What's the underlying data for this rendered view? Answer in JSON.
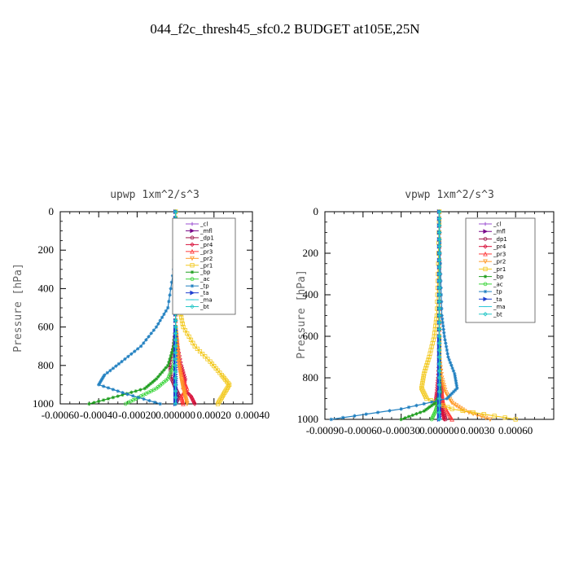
{
  "figure": {
    "title": "044_f2c_thresh45_sfc0.2  BUDGET at105E,25N"
  },
  "chart_data": [
    {
      "type": "line",
      "title": "upwp   1xm^2/s^3",
      "ylabel": "Pressure  [hPa]",
      "xlim": [
        -0.0006,
        0.0004
      ],
      "ylim": [
        1000,
        0
      ],
      "xticks": [
        -0.0006,
        -0.0004,
        -0.0002,
        0.0,
        0.0002,
        0.0004
      ],
      "xtick_labels": [
        "-0.00060",
        "-0.00040",
        "-0.00020",
        "0.000000",
        "0.00020",
        "0.00040"
      ],
      "yticks": [
        0,
        200,
        400,
        600,
        800,
        1000
      ],
      "ytick_labels": [
        "0",
        "200",
        "400",
        "600",
        "800",
        "1000"
      ],
      "legend": "inside-top-right",
      "series": [
        {
          "name": "_cl",
          "color": "#9b4fd0",
          "marker": "plus",
          "x": [
            0,
            0,
            0,
            0,
            0,
            0
          ],
          "y": [
            0,
            200,
            400,
            600,
            800,
            1000
          ]
        },
        {
          "name": "_mfl",
          "color": "#7a0a8a",
          "marker": "triangle-right",
          "x": [
            0,
            0,
            0,
            0,
            0,
            0
          ],
          "y": [
            0,
            200,
            400,
            600,
            800,
            1000
          ]
        },
        {
          "name": "_dp1",
          "color": "#a0144a",
          "marker": "circle",
          "x": [
            0,
            0,
            0,
            0,
            -1e-05,
            -3e-05,
            -2e-05,
            0,
            2e-05,
            0
          ],
          "y": [
            0,
            200,
            400,
            600,
            700,
            800,
            870,
            920,
            960,
            1000
          ]
        },
        {
          "name": "_pr4",
          "color": "#d8103a",
          "marker": "diamond",
          "x": [
            0,
            0,
            0,
            0,
            1e-05,
            3e-05,
            5e-05,
            4e-05,
            8e-05,
            0.0001
          ],
          "y": [
            0,
            200,
            400,
            600,
            700,
            800,
            870,
            920,
            960,
            1000
          ]
        },
        {
          "name": "_pr3",
          "color": "#ff3b3b",
          "marker": "triangle",
          "x": [
            0,
            0,
            0,
            0,
            1e-05,
            2e-05,
            4e-05,
            6e-05,
            3e-05,
            4e-05
          ],
          "y": [
            0,
            200,
            400,
            600,
            700,
            800,
            870,
            920,
            960,
            1000
          ]
        },
        {
          "name": "_pr2",
          "color": "#ff9a2a",
          "marker": "triangle-down",
          "x": [
            0,
            0,
            0,
            0,
            1e-05,
            2e-05,
            3e-05,
            4e-05,
            5e-05,
            6e-05
          ],
          "y": [
            0,
            200,
            400,
            600,
            700,
            800,
            870,
            920,
            960,
            1000
          ]
        },
        {
          "name": "_pr1",
          "color": "#f2c81c",
          "marker": "square",
          "x": [
            0,
            1e-05,
            2e-05,
            4e-05,
            0.0001,
            0.00018,
            0.00024,
            0.00028,
            0.00025,
            0.00022
          ],
          "y": [
            0,
            300,
            500,
            600,
            700,
            780,
            850,
            900,
            950,
            1000
          ]
        },
        {
          "name": "_bp",
          "color": "#1f9e1f",
          "marker": "star",
          "x": [
            0,
            0,
            0,
            0,
            -1e-05,
            -4e-05,
            -0.0001,
            -0.00016,
            -0.0003,
            -0.00045
          ],
          "y": [
            0,
            200,
            400,
            600,
            700,
            800,
            870,
            920,
            960,
            1000
          ]
        },
        {
          "name": "_ac",
          "color": "#37d437",
          "marker": "circle",
          "x": [
            0,
            0,
            0,
            0,
            0,
            -1e-05,
            -4e-05,
            -0.0001,
            -0.00018,
            -0.00026
          ],
          "y": [
            0,
            200,
            400,
            600,
            700,
            800,
            870,
            920,
            960,
            1000
          ]
        },
        {
          "name": "_tp",
          "color": "#1f7fc0",
          "marker": "star",
          "x": [
            0,
            -1e-05,
            -4e-05,
            -0.0001,
            -0.00018,
            -0.00028,
            -0.00037,
            -0.0004,
            -0.00025,
            -8e-05
          ],
          "y": [
            0,
            300,
            500,
            600,
            700,
            780,
            850,
            900,
            950,
            1000
          ]
        },
        {
          "name": "_ta",
          "color": "#2040d0",
          "marker": "triangle-right",
          "x": [
            0,
            0,
            0,
            0,
            0,
            0,
            0,
            0,
            0,
            0
          ],
          "y": [
            0,
            200,
            400,
            600,
            700,
            800,
            870,
            920,
            960,
            1000
          ]
        },
        {
          "name": "_ma",
          "color": "#2ec8d8",
          "marker": "dash",
          "x": [
            0,
            0,
            0,
            0,
            0,
            0
          ],
          "y": [
            0,
            200,
            400,
            600,
            800,
            1000
          ]
        },
        {
          "name": "_bt",
          "color": "#22c6c6",
          "marker": "diamond",
          "x": [
            0,
            0,
            0,
            0,
            0,
            0
          ],
          "y": [
            0,
            200,
            400,
            600,
            800,
            1000
          ]
        }
      ]
    },
    {
      "type": "line",
      "title": "vpwp   1xm^2/s^3",
      "ylabel": "Pressure  [hPa]",
      "xlim": [
        -0.0009,
        0.0009
      ],
      "ylim": [
        1000,
        0
      ],
      "xticks": [
        -0.0009,
        -0.0006,
        -0.0003,
        0.0,
        0.0003,
        0.0006
      ],
      "xtick_labels": [
        "-0.00090",
        "-0.00060",
        "-0.00030",
        "0.000000",
        "0.00030",
        "0.00060"
      ],
      "yticks": [
        0,
        200,
        400,
        600,
        800,
        1000
      ],
      "ytick_labels": [
        "0",
        "200",
        "400",
        "600",
        "800",
        "1000"
      ],
      "legend": "inside-top-right",
      "series": [
        {
          "name": "_cl",
          "color": "#9b4fd0",
          "marker": "plus",
          "x": [
            0,
            0,
            0,
            0,
            0,
            0
          ],
          "y": [
            0,
            200,
            400,
            600,
            800,
            1000
          ]
        },
        {
          "name": "_mfl",
          "color": "#7a0a8a",
          "marker": "triangle-right",
          "x": [
            0,
            0,
            0,
            0,
            0,
            0
          ],
          "y": [
            0,
            200,
            400,
            600,
            800,
            1000
          ]
        },
        {
          "name": "_dp1",
          "color": "#a0144a",
          "marker": "circle",
          "x": [
            0,
            0,
            0,
            0,
            0,
            1e-05,
            2e-05,
            1e-05,
            3e-05,
            5e-05
          ],
          "y": [
            0,
            200,
            400,
            600,
            700,
            800,
            870,
            920,
            960,
            1000
          ]
        },
        {
          "name": "_pr4",
          "color": "#d8103a",
          "marker": "diamond",
          "x": [
            0,
            0,
            0,
            0,
            0,
            -1e-05,
            -2e-05,
            -3e-05,
            2e-05,
            4e-05
          ],
          "y": [
            0,
            200,
            400,
            600,
            700,
            800,
            870,
            920,
            960,
            1000
          ]
        },
        {
          "name": "_pr3",
          "color": "#ff3b3b",
          "marker": "triangle",
          "x": [
            0,
            0,
            0,
            0,
            0,
            1e-05,
            2e-05,
            3e-05,
            6e-05,
            0.0001
          ],
          "y": [
            0,
            200,
            400,
            600,
            700,
            800,
            870,
            920,
            960,
            1000
          ]
        },
        {
          "name": "_pr2",
          "color": "#ff9a2a",
          "marker": "triangle-down",
          "x": [
            0,
            0,
            0,
            0,
            0,
            2e-05,
            5e-05,
            0.0001,
            0.0002,
            0.0004
          ],
          "y": [
            0,
            200,
            400,
            600,
            700,
            800,
            870,
            920,
            960,
            1000
          ]
        },
        {
          "name": "_pr1",
          "color": "#f2c81c",
          "marker": "square",
          "x": [
            0,
            -1e-05,
            -2e-05,
            -4e-05,
            -8e-05,
            -0.00012,
            -0.00014,
            -0.0001,
            0.0001,
            0.0006
          ],
          "y": [
            0,
            300,
            500,
            600,
            700,
            780,
            850,
            900,
            950,
            1000
          ]
        },
        {
          "name": "_bp",
          "color": "#1f9e1f",
          "marker": "star",
          "x": [
            0,
            0,
            0,
            0,
            0,
            0,
            1e-05,
            -3e-05,
            -0.00012,
            -0.0003
          ],
          "y": [
            0,
            200,
            400,
            600,
            700,
            800,
            870,
            920,
            960,
            1000
          ]
        },
        {
          "name": "_ac",
          "color": "#37d437",
          "marker": "circle",
          "x": [
            0,
            0,
            0,
            0,
            0,
            0,
            0,
            -1e-05,
            -3e-05,
            -6e-05
          ],
          "y": [
            0,
            200,
            400,
            600,
            700,
            800,
            870,
            920,
            960,
            1000
          ]
        },
        {
          "name": "_tp",
          "color": "#1f7fc0",
          "marker": "star",
          "x": [
            0,
            1e-05,
            2e-05,
            4e-05,
            7e-05,
            0.00012,
            0.00014,
            6e-05,
            -0.0003,
            -0.00085
          ],
          "y": [
            0,
            300,
            500,
            600,
            700,
            780,
            850,
            900,
            950,
            1000
          ]
        },
        {
          "name": "_ta",
          "color": "#2040d0",
          "marker": "triangle-right",
          "x": [
            0,
            0,
            0,
            0,
            0,
            0,
            0,
            0,
            0,
            0
          ],
          "y": [
            0,
            200,
            400,
            600,
            700,
            800,
            870,
            920,
            960,
            1000
          ]
        },
        {
          "name": "_ma",
          "color": "#2ec8d8",
          "marker": "dash",
          "x": [
            0,
            0,
            0,
            0,
            0,
            0
          ],
          "y": [
            0,
            200,
            400,
            600,
            800,
            1000
          ]
        },
        {
          "name": "_bt",
          "color": "#22c6c6",
          "marker": "diamond",
          "x": [
            0,
            0,
            0,
            0,
            0,
            0
          ],
          "y": [
            0,
            200,
            400,
            600,
            800,
            1000
          ]
        }
      ]
    }
  ]
}
